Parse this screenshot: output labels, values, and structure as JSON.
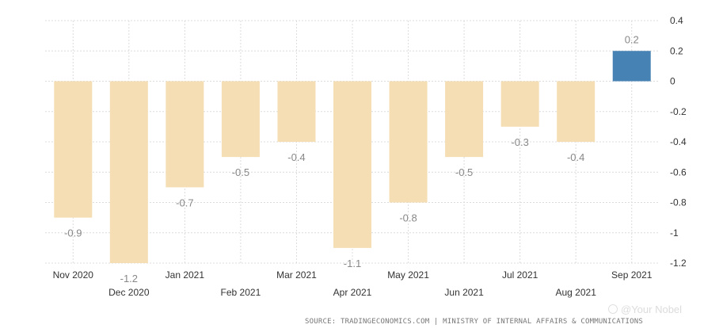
{
  "chart_data": {
    "type": "bar",
    "categories": [
      "Nov 2020",
      "Dec 2020",
      "Jan 2021",
      "Feb 2021",
      "Mar 2021",
      "Apr 2021",
      "May 2021",
      "Jun 2021",
      "Jul 2021",
      "Aug 2021",
      "Sep 2021"
    ],
    "values": [
      -0.9,
      -1.2,
      -0.7,
      -0.5,
      -0.4,
      -1.1,
      -0.8,
      -0.5,
      -0.3,
      -0.4,
      0.2
    ],
    "value_labels": [
      "-0.9",
      "-1.2",
      "-0.7",
      "-0.5",
      "-0.4",
      "-1.1",
      "-0.8",
      "-0.5",
      "-0.3",
      "-0.4",
      "0.2"
    ],
    "ylim": [
      -1.2,
      0.4
    ],
    "yticks": [
      0.4,
      0.2,
      0,
      -0.2,
      -0.4,
      -0.6,
      -0.8,
      -1,
      -1.2
    ],
    "ytick_labels": [
      "0.4",
      "0.2",
      "0",
      "-0.2",
      "-0.4",
      "-0.6",
      "-0.8",
      "-1",
      "-1.2"
    ],
    "y_axis_side": "right",
    "grid": true,
    "legend": "none",
    "colors": {
      "negative": "#f5deb3",
      "positive": "#4682b4",
      "grid": "#dcdcdc",
      "label": "#888888",
      "tick": "#333333"
    }
  },
  "source": "SOURCE: TRADINGECONOMICS.COM | MINISTRY OF INTERNAL AFFAIRS & COMMUNICATIONS",
  "watermark": "@Your Nobel"
}
